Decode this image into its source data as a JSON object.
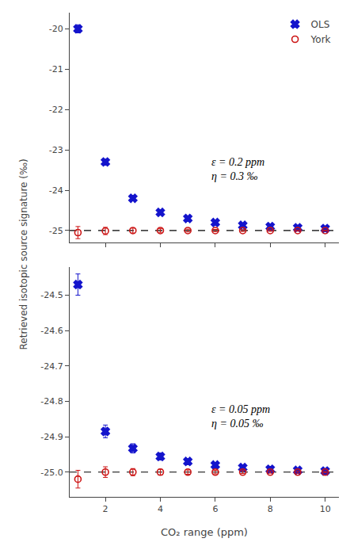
{
  "chart_data": [
    {
      "type": "scatter",
      "ylabel": "Retrieved isotopic source signature (‰)",
      "x": [
        1,
        2,
        3,
        4,
        5,
        6,
        7,
        8,
        9,
        10
      ],
      "series": [
        {
          "name": "OLS",
          "color": "#1414cc",
          "marker": "x",
          "values": [
            -20.0,
            -23.3,
            -24.2,
            -24.55,
            -24.7,
            -24.8,
            -24.87,
            -24.9,
            -24.93,
            -24.95
          ],
          "errors": [
            0.1,
            0.07,
            0.06,
            0.05,
            0.04,
            0.035,
            0.03,
            0.025,
            0.02,
            0.018
          ]
        },
        {
          "name": "York",
          "color": "#cc1414",
          "marker": "circle-open",
          "values": [
            -25.05,
            -25.01,
            -25.0,
            -25.0,
            -25.0,
            -25.0,
            -25.0,
            -25.0,
            -25.0,
            -25.0
          ],
          "errors": [
            0.15,
            0.09,
            0.06,
            0.045,
            0.035,
            0.028,
            0.023,
            0.019,
            0.016,
            0.014
          ]
        }
      ],
      "reference_y": -25.0,
      "annotation": "ε = 0.2 ppm\nη = 0.3 ‰",
      "xlim": [
        0.7,
        10.5
      ],
      "xticks": [
        2,
        4,
        6,
        8,
        10
      ],
      "ylim": [
        -25.3,
        -19.6
      ],
      "yticks": [
        -25,
        -24,
        -23,
        -22,
        -21,
        -20
      ],
      "tick_labels": "y",
      "legend": "upper right",
      "grid": false
    },
    {
      "type": "scatter",
      "xlabel": "CO₂ range (ppm)",
      "x": [
        1,
        2,
        3,
        4,
        5,
        6,
        7,
        8,
        9,
        10
      ],
      "series": [
        {
          "name": "OLS",
          "color": "#1414cc",
          "marker": "x",
          "values": [
            -24.47,
            -24.885,
            -24.933,
            -24.956,
            -24.97,
            -24.98,
            -24.987,
            -24.992,
            -24.995,
            -24.997
          ],
          "errors": [
            0.03,
            0.018,
            0.013,
            0.01,
            0.008,
            0.006,
            0.005,
            0.004,
            0.004,
            0.003
          ]
        },
        {
          "name": "York",
          "color": "#cc1414",
          "marker": "circle-open",
          "values": [
            -25.02,
            -25.0,
            -25.0,
            -25.0,
            -25.0,
            -25.0,
            -25.0,
            -25.0,
            -25.0,
            -25.0
          ],
          "errors": [
            0.025,
            0.015,
            0.01,
            0.008,
            0.006,
            0.005,
            0.004,
            0.003,
            0.003,
            0.002
          ]
        }
      ],
      "reference_y": -25.0,
      "annotation": "ε = 0.05 ppm\nη = 0.05 ‰",
      "xlim": [
        0.7,
        10.5
      ],
      "xticks": [
        2,
        4,
        6,
        8,
        10
      ],
      "ylim": [
        -25.07,
        -24.42
      ],
      "yticks": [
        {
          "value": -25.0,
          "label": "-25.0"
        },
        -24.9,
        -24.8,
        -24.7,
        -24.6,
        -24.5
      ],
      "legend": false,
      "grid": false
    }
  ]
}
